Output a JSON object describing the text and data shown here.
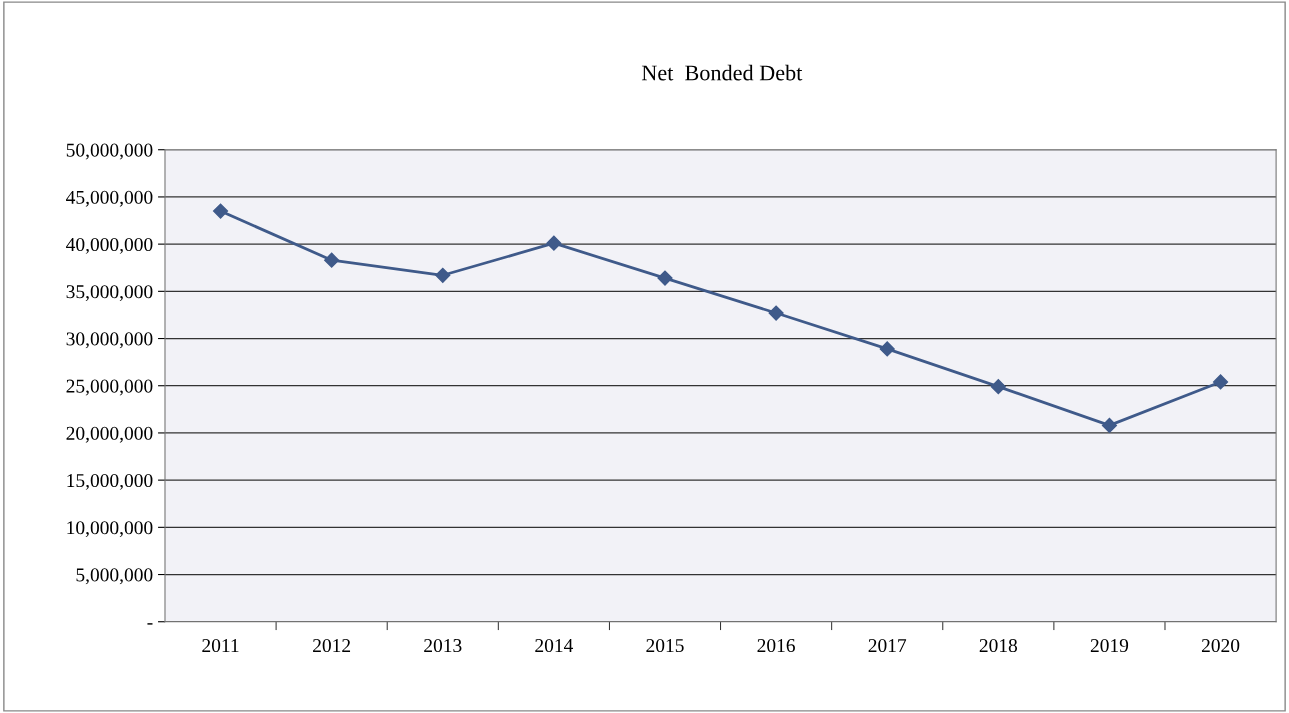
{
  "chart_data": {
    "type": "line",
    "title": "Net  Bonded Debt",
    "categories": [
      "2011",
      "2012",
      "2013",
      "2014",
      "2015",
      "2016",
      "2017",
      "2018",
      "2019",
      "2020"
    ],
    "series": [
      {
        "color": "#3f5a8a",
        "values": [
          43500000,
          38300000,
          36700000,
          40100000,
          36400000,
          32700000,
          28900000,
          24900000,
          20800000,
          25400000
        ]
      }
    ],
    "ylim": [
      0,
      50000000
    ],
    "yticks": [
      {
        "value": 0,
        "label": "-"
      },
      {
        "value": 5000000,
        "label": "5,000,000"
      },
      {
        "value": 10000000,
        "label": "10,000,000"
      },
      {
        "value": 15000000,
        "label": "15,000,000"
      },
      {
        "value": 20000000,
        "label": "20,000,000"
      },
      {
        "value": 25000000,
        "label": "25,000,000"
      },
      {
        "value": 30000000,
        "label": "30,000,000"
      },
      {
        "value": 35000000,
        "label": "35,000,000"
      },
      {
        "value": 40000000,
        "label": "40,000,000"
      },
      {
        "value": 45000000,
        "label": "45,000,000"
      },
      {
        "value": 50000000,
        "label": "50,000,000"
      }
    ],
    "grid": "y",
    "marker": "diamond",
    "line_style": "solid",
    "legend": false
  }
}
